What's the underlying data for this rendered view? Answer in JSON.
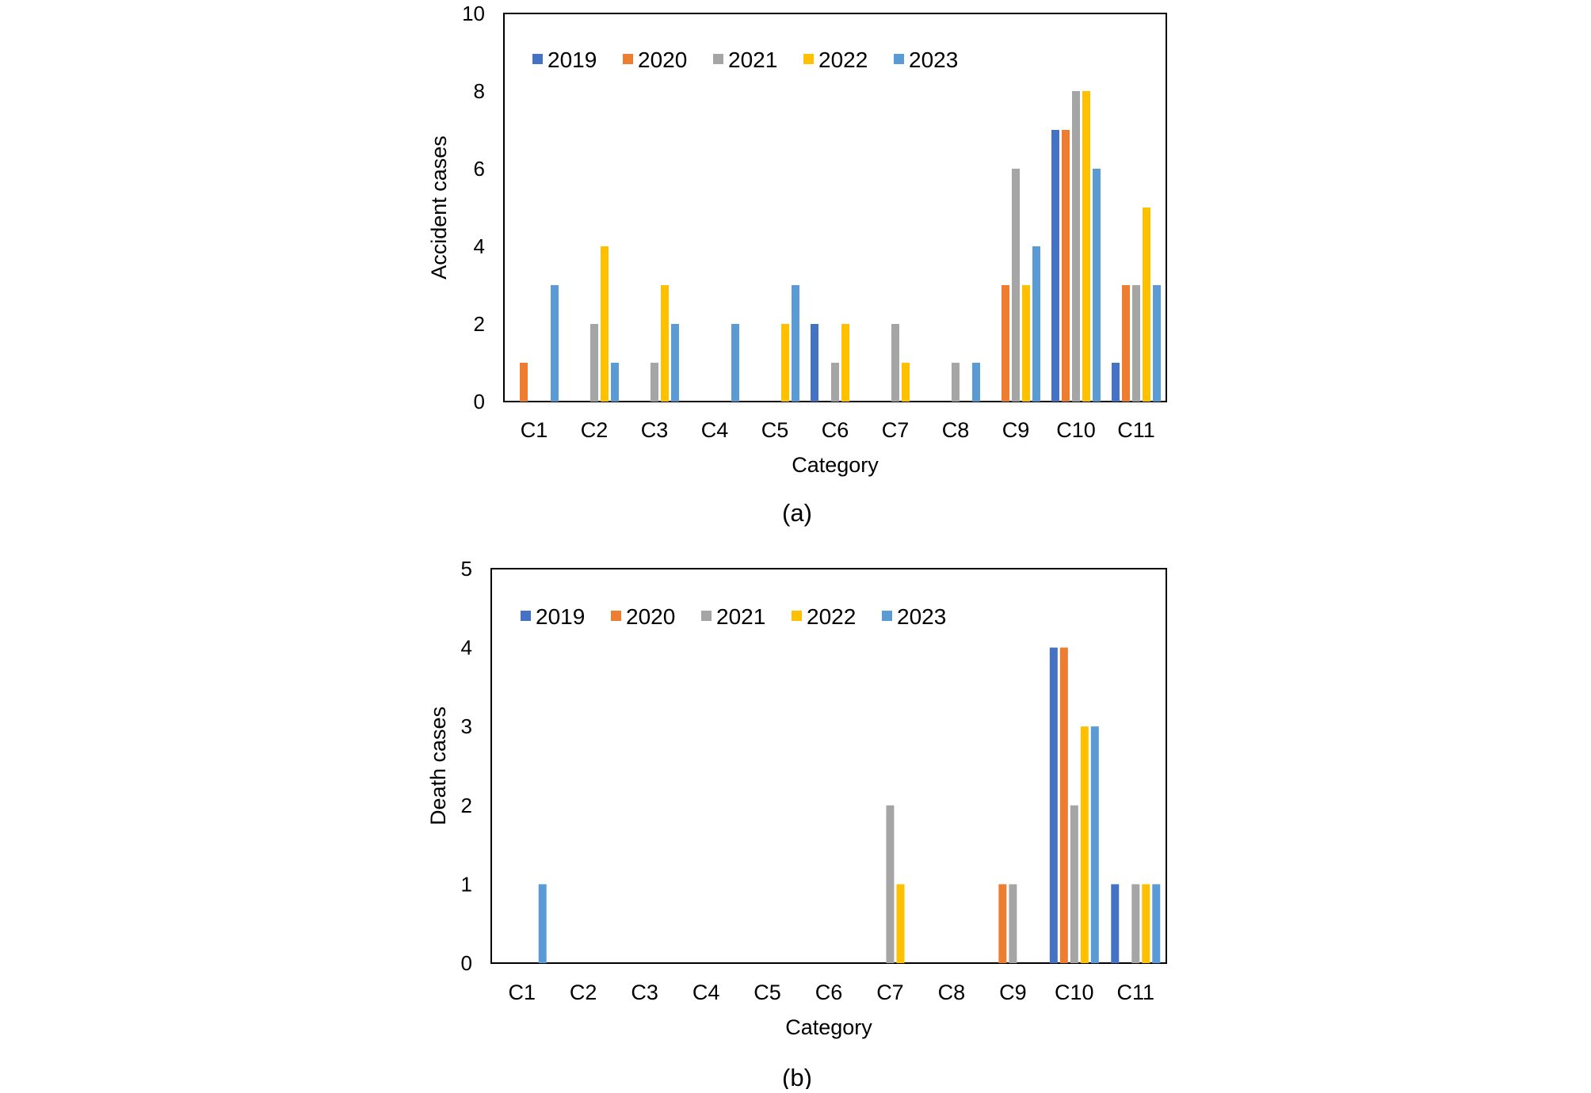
{
  "colors": {
    "2019": "#4472c4",
    "2020": "#ed7d31",
    "2021": "#a5a5a5",
    "2022": "#ffc000",
    "2023": "#5b9bd5"
  },
  "chart_data": [
    {
      "type": "bar",
      "caption": "(a)",
      "xlabel": "Category",
      "ylabel": "Accident cases",
      "ylim": [
        0,
        10
      ],
      "yticks": [
        "0",
        "2",
        "4",
        "6",
        "8",
        "10"
      ],
      "categories": [
        "C1",
        "C2",
        "C3",
        "C4",
        "C5",
        "C6",
        "C7",
        "C8",
        "C9",
        "C10",
        "C11"
      ],
      "legend_position": "top-left",
      "series": [
        {
          "name": "2019",
          "values": [
            0,
            0,
            0,
            0,
            0,
            2,
            0,
            0,
            0,
            7,
            1
          ]
        },
        {
          "name": "2020",
          "values": [
            1,
            0,
            0,
            0,
            0,
            0,
            0,
            0,
            3,
            7,
            3
          ]
        },
        {
          "name": "2021",
          "values": [
            0,
            2,
            1,
            0,
            0,
            1,
            2,
            1,
            6,
            8,
            3
          ]
        },
        {
          "name": "2022",
          "values": [
            0,
            4,
            3,
            0,
            2,
            2,
            1,
            0,
            3,
            8,
            5
          ]
        },
        {
          "name": "2023",
          "values": [
            3,
            1,
            2,
            2,
            3,
            0,
            0,
            1,
            4,
            6,
            3
          ]
        }
      ]
    },
    {
      "type": "bar",
      "caption": "(b)",
      "xlabel": "Category",
      "ylabel": "Death cases",
      "ylim": [
        0,
        5
      ],
      "yticks": [
        "0",
        "1",
        "2",
        "3",
        "4",
        "5"
      ],
      "categories": [
        "C1",
        "C2",
        "C3",
        "C4",
        "C5",
        "C6",
        "C7",
        "C8",
        "C9",
        "C10",
        "C11"
      ],
      "legend_position": "top-left",
      "series": [
        {
          "name": "2019",
          "values": [
            0,
            0,
            0,
            0,
            0,
            0,
            0,
            0,
            0,
            4,
            1
          ]
        },
        {
          "name": "2020",
          "values": [
            0,
            0,
            0,
            0,
            0,
            0,
            0,
            0,
            1,
            4,
            0
          ]
        },
        {
          "name": "2021",
          "values": [
            0,
            0,
            0,
            0,
            0,
            0,
            2,
            0,
            1,
            2,
            1
          ]
        },
        {
          "name": "2022",
          "values": [
            0,
            0,
            0,
            0,
            0,
            0,
            1,
            0,
            0,
            3,
            1
          ]
        },
        {
          "name": "2023",
          "values": [
            1,
            0,
            0,
            0,
            0,
            0,
            0,
            0,
            0,
            3,
            1
          ]
        }
      ]
    }
  ]
}
